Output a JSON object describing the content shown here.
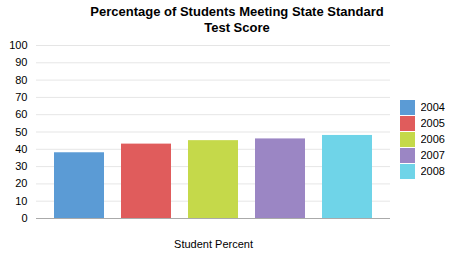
{
  "chart_data": {
    "type": "bar",
    "title": "Percentage of Students Meeting State Standard\nTest Score",
    "xlabel": "Student Percent",
    "categories": [
      "2004",
      "2005",
      "2006",
      "2007",
      "2008"
    ],
    "values": [
      38,
      43,
      45,
      46,
      48
    ],
    "colors": [
      "#5B9BD5",
      "#E05C5C",
      "#C5D94A",
      "#9B86C4",
      "#6FD4E8"
    ],
    "ylim": [
      0,
      100
    ],
    "yticks": [
      0,
      10,
      20,
      30,
      40,
      50,
      60,
      70,
      80,
      90,
      100
    ],
    "grid": true,
    "legend": "right",
    "tick_labels": "y"
  }
}
